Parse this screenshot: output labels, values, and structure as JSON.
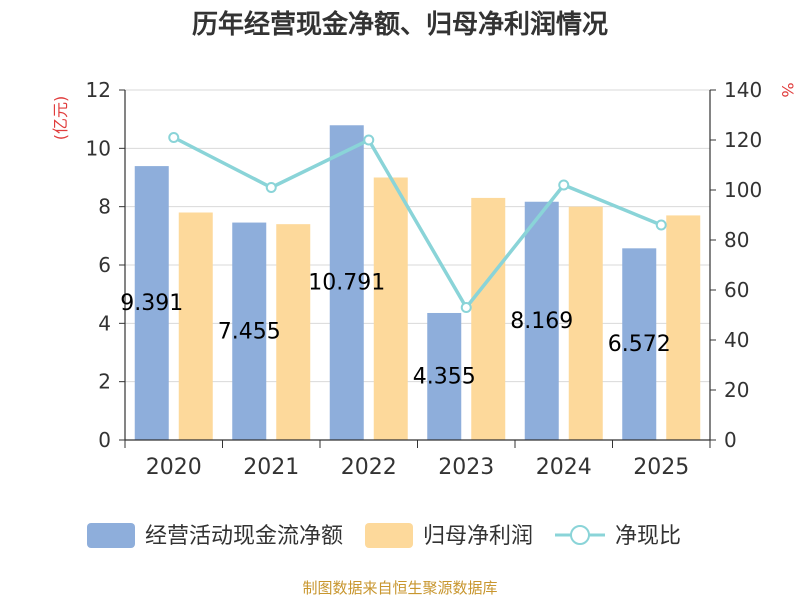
{
  "chart_data": {
    "type": "bar",
    "title": "历年经营现金净额、归母净利润情况",
    "categories": [
      "2020",
      "2021",
      "2022",
      "2023",
      "2024",
      "2025"
    ],
    "series": [
      {
        "name": "经营活动现金流净额",
        "axis": "left",
        "kind": "bar",
        "color": "#8eaedb",
        "values": [
          9.391,
          7.455,
          10.791,
          4.355,
          8.169,
          6.572
        ],
        "labels": [
          "9.391",
          "7.455",
          "10.791",
          "4.355",
          "8.169",
          "6.572"
        ]
      },
      {
        "name": "归母净利润",
        "axis": "left",
        "kind": "bar",
        "color": "#fdd99b",
        "values": [
          7.8,
          7.4,
          9.0,
          8.3,
          8.0,
          7.7
        ]
      },
      {
        "name": "净现比",
        "axis": "right",
        "kind": "line",
        "color": "#8ad4d8",
        "values": [
          121,
          101,
          120,
          53,
          102,
          86
        ]
      }
    ],
    "left_axis": {
      "label": "(亿元)",
      "ylim": [
        0,
        12
      ],
      "ticks": [
        "0",
        "2",
        "4",
        "6",
        "8",
        "10",
        "12"
      ]
    },
    "right_axis": {
      "label": "%",
      "ylim": [
        0,
        140
      ],
      "ticks": [
        "0",
        "20",
        "40",
        "60",
        "80",
        "100",
        "120",
        "140"
      ]
    },
    "legend_position": "bottom",
    "grid": true
  },
  "source": "制图数据来自恒生聚源数据库",
  "colors": {
    "axis_label": "#e03c3c",
    "tick": "#333333",
    "grid": "#d9d9d9"
  }
}
